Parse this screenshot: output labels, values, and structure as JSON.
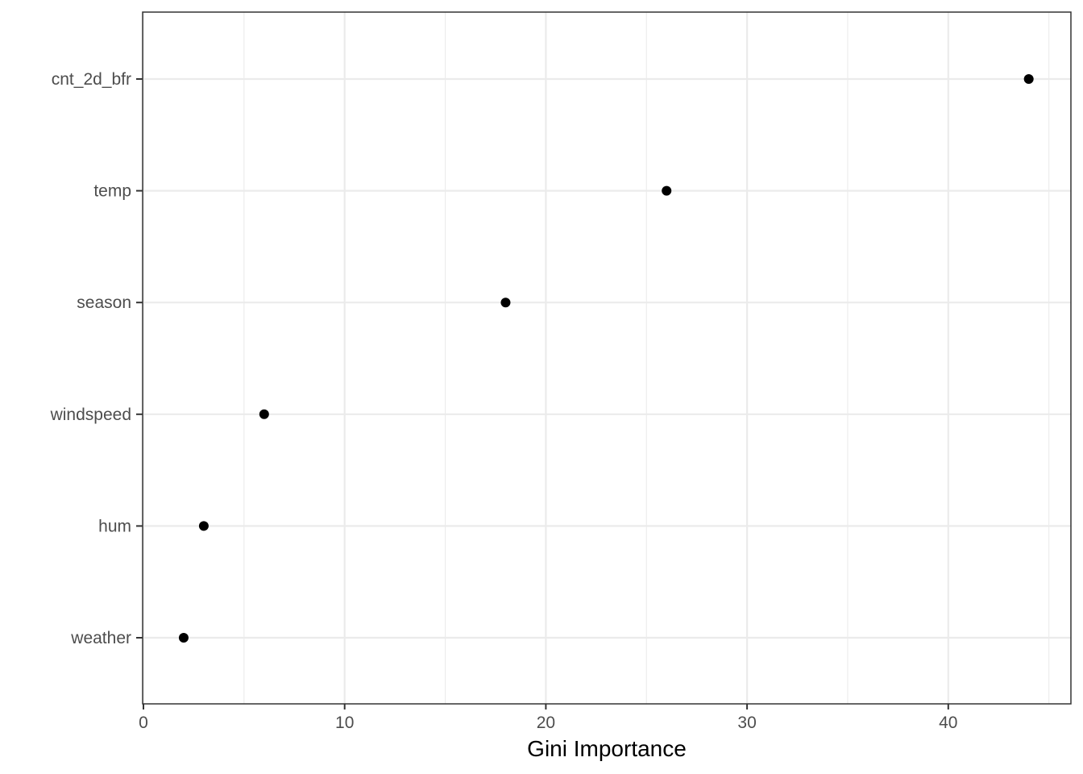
{
  "chart_data": {
    "type": "scatter",
    "title": "",
    "xlabel": "Gini Importance",
    "ylabel": "",
    "xlim": [
      0,
      46
    ],
    "x_ticks": [
      0,
      10,
      20,
      30,
      40
    ],
    "x_minor_ticks": [
      5,
      15,
      25,
      35,
      45
    ],
    "grid": true,
    "legend": "none",
    "categories": [
      "cnt_2d_bfr",
      "temp",
      "season",
      "windspeed",
      "hum",
      "weather"
    ],
    "values": [
      44,
      26,
      18,
      6,
      3,
      2
    ],
    "point_color": "#000000"
  }
}
